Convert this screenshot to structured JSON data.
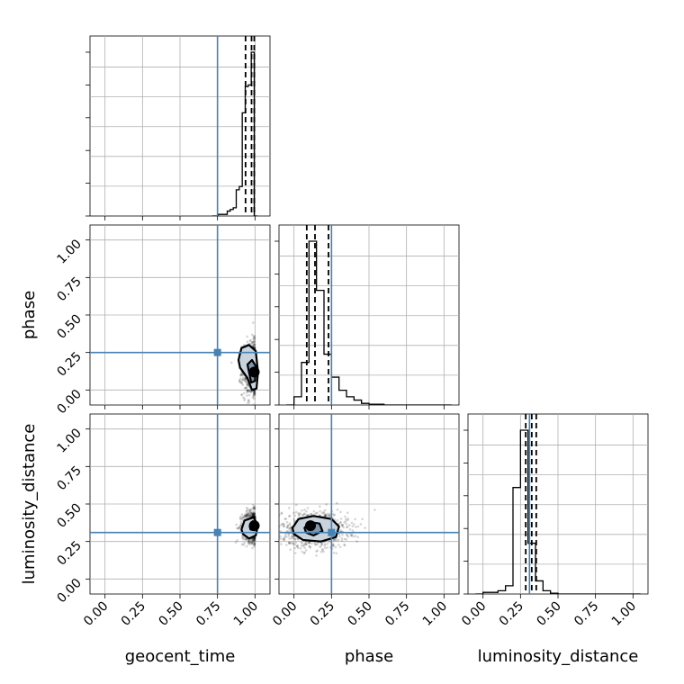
{
  "chart_data": {
    "type": "corner",
    "parameters": [
      "geocent_time",
      "phase",
      "luminosity_distance"
    ],
    "axis_range": [
      -0.1,
      1.1
    ],
    "tick_values": [
      0.0,
      0.25,
      0.5,
      0.75,
      1.0
    ],
    "tick_labels": [
      "0.00",
      "0.25",
      "0.50",
      "0.75",
      "1.00"
    ],
    "grid": true,
    "colors": {
      "truth": "#4682b4",
      "hist": "#000000",
      "contour_outer": "#c9d3de",
      "contour_inner": "#8097ad"
    },
    "truths": {
      "geocent_time": 0.75,
      "phase": 0.25,
      "luminosity_distance": 0.31
    },
    "histograms": [
      {
        "parameter": "geocent_time",
        "bin_edges": [
          0.715,
          0.735,
          0.755,
          0.775,
          0.795,
          0.815,
          0.835,
          0.855,
          0.875,
          0.895,
          0.915,
          0.935,
          0.955,
          0.975,
          0.995,
          1.015
        ],
        "counts": [
          0.0,
          0.0,
          0.01,
          0.01,
          0.01,
          0.03,
          0.04,
          0.05,
          0.16,
          0.18,
          0.63,
          0.79,
          0.8,
          1.0,
          0.0
        ],
        "quantiles": [
          0.937,
          0.977,
          0.995
        ]
      },
      {
        "parameter": "phase",
        "bin_edges": [
          -0.05,
          0.0,
          0.05,
          0.1,
          0.15,
          0.2,
          0.25,
          0.3,
          0.35,
          0.4,
          0.45,
          0.5,
          0.55,
          0.6,
          0.65,
          0.7,
          0.75,
          0.8,
          0.85,
          0.9,
          0.95,
          1.0,
          1.05
        ],
        "counts": [
          0.0,
          0.05,
          0.26,
          1.0,
          0.7,
          0.31,
          0.17,
          0.09,
          0.05,
          0.03,
          0.01,
          0.005,
          0.005,
          0.0,
          0.0,
          0.0,
          0.0,
          0.0,
          0.0,
          0.0,
          0.0,
          0.0
        ],
        "quantiles": [
          0.085,
          0.14,
          0.23
        ]
      },
      {
        "parameter": "luminosity_distance",
        "bin_edges": [
          -0.05,
          0.0,
          0.05,
          0.1,
          0.15,
          0.2,
          0.25,
          0.3,
          0.35,
          0.4,
          0.45,
          0.5,
          0.55,
          0.6,
          0.65,
          0.7,
          0.75,
          0.8,
          0.85,
          0.9,
          0.95,
          1.0,
          1.05
        ],
        "counts": [
          0.0,
          0.01,
          0.01,
          0.02,
          0.05,
          0.65,
          1.0,
          0.31,
          0.08,
          0.02,
          0.005,
          0.0,
          0.0,
          0.0,
          0.0,
          0.0,
          0.0,
          0.0,
          0.0,
          0.0,
          0.0,
          0.0
        ],
        "quantiles": [
          0.285,
          0.325,
          0.355
        ]
      }
    ],
    "joint_panels": [
      {
        "x": "geocent_time",
        "y": "phase",
        "center": [
          0.985,
          0.14
        ],
        "spread": [
          0.035,
          0.09
        ],
        "contour_outer": [
          [
            0.89,
            0.2
          ],
          [
            0.91,
            0.28
          ],
          [
            0.96,
            0.3
          ],
          [
            1.005,
            0.26
          ],
          [
            1.02,
            0.12
          ],
          [
            1.01,
            0.01
          ],
          [
            0.98,
            0.0
          ],
          [
            0.95,
            0.08
          ],
          [
            0.9,
            0.15
          ]
        ],
        "contour_inner": [
          [
            0.95,
            0.17
          ],
          [
            0.98,
            0.2
          ],
          [
            1.005,
            0.16
          ],
          [
            1.0,
            0.06
          ],
          [
            0.975,
            0.05
          ],
          [
            0.96,
            0.12
          ]
        ],
        "core": [
          0.995,
          0.12
        ]
      },
      {
        "x": "geocent_time",
        "y": "luminosity_distance",
        "center": [
          0.985,
          0.35
        ],
        "spread": [
          0.035,
          0.05
        ],
        "contour_outer": [
          [
            0.91,
            0.33
          ],
          [
            0.93,
            0.39
          ],
          [
            0.99,
            0.41
          ],
          [
            1.02,
            0.36
          ],
          [
            1.005,
            0.29
          ],
          [
            0.96,
            0.27
          ],
          [
            0.92,
            0.3
          ]
        ],
        "contour_inner": [
          [
            0.965,
            0.35
          ],
          [
            0.985,
            0.385
          ],
          [
            1.005,
            0.36
          ],
          [
            0.995,
            0.325
          ],
          [
            0.97,
            0.33
          ]
        ],
        "core": [
          0.995,
          0.355
        ]
      },
      {
        "x": "phase",
        "y": "luminosity_distance",
        "center": [
          0.14,
          0.33
        ],
        "spread": [
          0.11,
          0.06
        ],
        "contour_outer": [
          [
            -0.01,
            0.34
          ],
          [
            0.03,
            0.4
          ],
          [
            0.13,
            0.42
          ],
          [
            0.25,
            0.4
          ],
          [
            0.3,
            0.35
          ],
          [
            0.28,
            0.28
          ],
          [
            0.18,
            0.25
          ],
          [
            0.06,
            0.26
          ],
          [
            0.0,
            0.3
          ]
        ],
        "contour_inner": [
          [
            0.07,
            0.34
          ],
          [
            0.1,
            0.38
          ],
          [
            0.17,
            0.37
          ],
          [
            0.19,
            0.32
          ],
          [
            0.13,
            0.29
          ],
          [
            0.08,
            0.31
          ]
        ],
        "core": [
          0.11,
          0.355
        ]
      }
    ]
  }
}
